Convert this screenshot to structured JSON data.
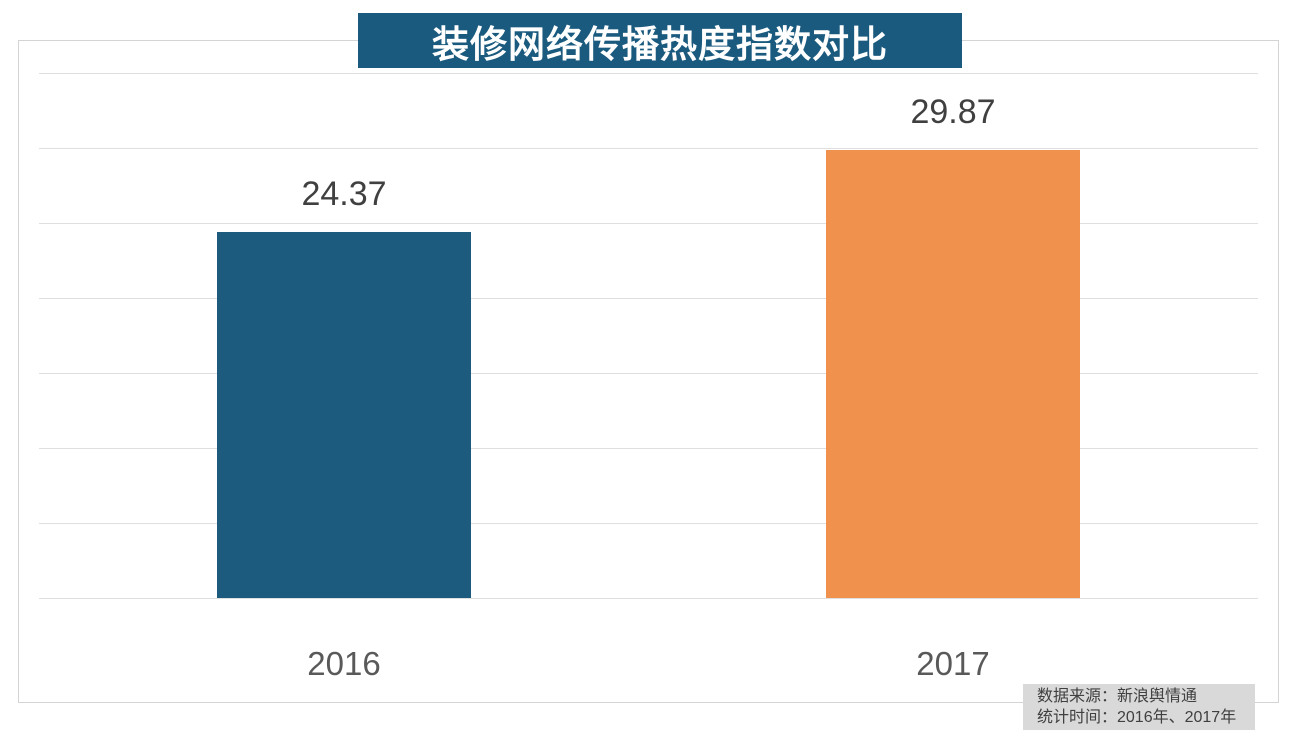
{
  "chart_data": {
    "type": "bar",
    "title": "装修网络传播热度指数对比",
    "categories": [
      "2016",
      "2017"
    ],
    "values": [
      24.37,
      29.87
    ],
    "value_labels": [
      "24.37",
      "29.87"
    ],
    "series": [
      {
        "name": "装修网络传播热度指数",
        "values": [
          24.37,
          29.87
        ]
      }
    ],
    "bar_colors": [
      "#1d5b7e",
      "#f0914d"
    ],
    "xlabel": "",
    "ylabel": "",
    "ylim": [
      0,
      35
    ],
    "gridline_step": 5,
    "grid": true,
    "y_axis_tick_labels_visible": false,
    "legend_position": "none",
    "title_banner_color": "#1a5a7e",
    "title_text_color": "#ffffff"
  },
  "source_note": {
    "line1": "数据来源：新浪舆情通",
    "line2": "统计时间：2016年、2017年",
    "background": "#d9d9d9",
    "text_color": "#404040"
  },
  "colors": {
    "gridline": "#dfdfdf",
    "plot_border": "#d4d4d4",
    "value_label_text": "#404040",
    "category_label_text": "#595959",
    "page_background": "#ffffff"
  }
}
